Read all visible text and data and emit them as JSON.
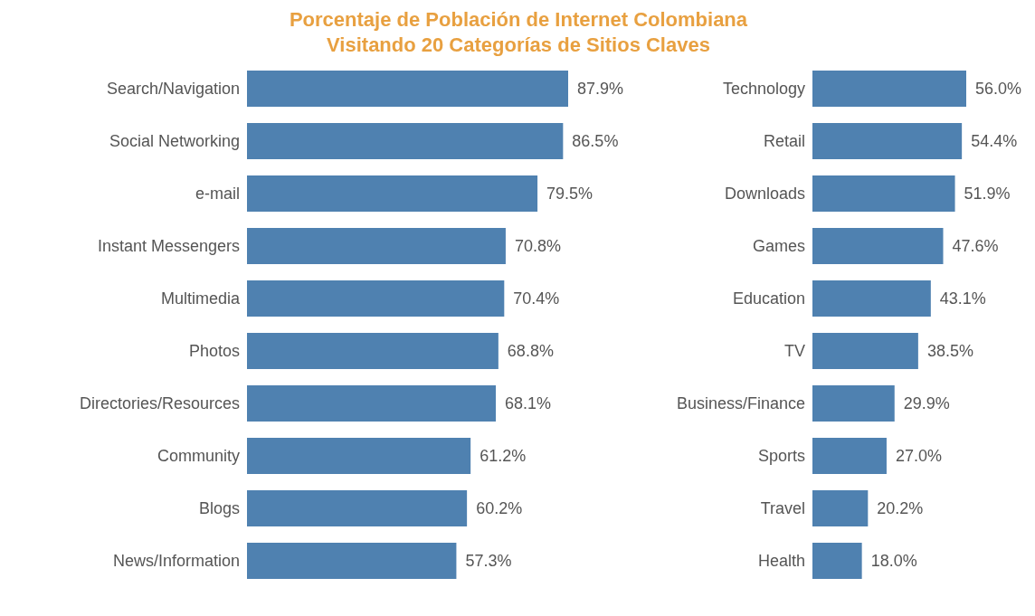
{
  "chart_data": [
    {
      "type": "bar",
      "orientation": "horizontal",
      "title": "Porcentaje de Población de Internet Colombiana\nVisitando 20 Categorías de Sitios Claves",
      "categories": [
        "Search/Navigation",
        "Social Networking",
        "e-mail",
        "Instant Messengers",
        "Multimedia",
        "Photos",
        "Directories/Resources",
        "Community",
        "Blogs",
        "News/Information"
      ],
      "values": [
        87.9,
        86.5,
        79.5,
        70.8,
        70.4,
        68.8,
        68.1,
        61.2,
        60.2,
        57.3
      ],
      "value_labels": [
        "87.9%",
        "86.5%",
        "79.5%",
        "70.8%",
        "70.4%",
        "68.8%",
        "68.1%",
        "61.2%",
        "60.2%",
        "57.3%"
      ],
      "color": "#4f81b0",
      "tick_labels": "y",
      "grid": false,
      "legend": false
    },
    {
      "type": "bar",
      "orientation": "horizontal",
      "categories": [
        "Technology",
        "Retail",
        "Downloads",
        "Games",
        "Education",
        "TV",
        "Business/Finance",
        "Sports",
        "Travel",
        "Health"
      ],
      "values": [
        56.0,
        54.4,
        51.9,
        47.6,
        43.1,
        38.5,
        29.9,
        27.0,
        20.2,
        18.0
      ],
      "value_labels": [
        "56.0%",
        "54.4%",
        "51.9%",
        "47.6%",
        "43.1%",
        "38.5%",
        "29.9%",
        "27.0%",
        "20.2%",
        "18.0%"
      ],
      "color": "#4f81b0",
      "tick_labels": "y",
      "grid": false,
      "legend": false
    }
  ]
}
